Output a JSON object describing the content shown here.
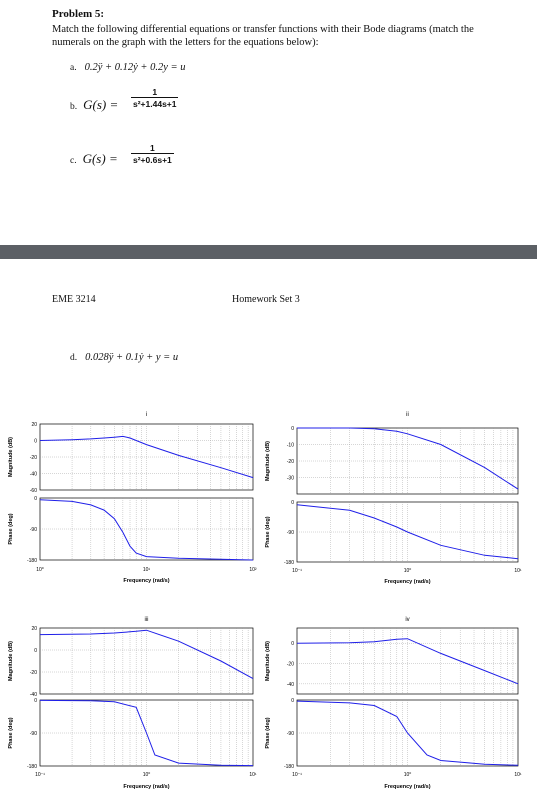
{
  "problem": {
    "title": "Problem 5:",
    "prompt": "Match the following differential equations or transfer functions with their Bode diagrams (match the numerals on the graph with the letters for the equations below):"
  },
  "equations": {
    "a": {
      "label": "a.",
      "text": "0.2ÿ + 0.12ẏ + 0.2y = u"
    },
    "b": {
      "label": "b.",
      "lhs": "G(s) =",
      "num": "1",
      "den": "s²+1.44s+1"
    },
    "c": {
      "label": "c.",
      "lhs": "G(s) =",
      "num": "1",
      "den": "s²+0.6s+1"
    },
    "d": {
      "label": "d.",
      "text": "0.028ÿ + 0.1ẏ + y = u"
    }
  },
  "page_header": {
    "left": "EME 3214",
    "right": "Homework Set 3"
  },
  "chart_data": [
    {
      "type": "line",
      "title": "i",
      "xlabel": "Frequency (rad/s)",
      "x_scale": "log",
      "xlim": [
        1,
        100
      ],
      "x_ticks": [
        "10⁰",
        "10¹",
        "10²"
      ],
      "magnitude": {
        "ylabel": "Magnitude (dB)",
        "ylim": [
          -60,
          20
        ],
        "y_ticks": [
          "20",
          "0",
          "-20",
          "-40",
          "-60"
        ],
        "x": [
          1,
          2,
          3,
          4,
          5,
          6,
          7,
          8,
          10,
          20,
          50,
          100
        ],
        "y": [
          0,
          1,
          2,
          3,
          4,
          5,
          3,
          0,
          -5,
          -18,
          -33,
          -45
        ]
      },
      "phase": {
        "ylabel": "Phase (deg)",
        "ylim": [
          -180,
          0
        ],
        "y_ticks": [
          "0",
          "-90",
          "-180"
        ],
        "x": [
          1,
          2,
          3,
          4,
          5,
          6,
          7,
          8,
          10,
          20,
          50,
          100
        ],
        "y": [
          -5,
          -10,
          -20,
          -35,
          -60,
          -100,
          -140,
          -160,
          -170,
          -175,
          -178,
          -180
        ]
      }
    },
    {
      "type": "line",
      "title": "ii",
      "xlabel": "Frequency (rad/s)",
      "x_scale": "log",
      "xlim": [
        0.1,
        10
      ],
      "x_ticks": [
        "10⁻¹",
        "10⁰",
        "10¹"
      ],
      "magnitude": {
        "ylabel": "Magnitude (dB)",
        "ylim": [
          -40,
          0
        ],
        "y_ticks": [
          "0",
          "-10",
          "-20",
          "-30"
        ],
        "x": [
          0.1,
          0.3,
          0.5,
          0.8,
          1,
          2,
          5,
          10
        ],
        "y": [
          0,
          0,
          -0.5,
          -2,
          -3.5,
          -10,
          -24,
          -37
        ]
      },
      "phase": {
        "ylabel": "Phase (deg)",
        "ylim": [
          -180,
          0
        ],
        "y_ticks": [
          "0",
          "-90",
          "-180"
        ],
        "x": [
          0.1,
          0.3,
          0.5,
          0.8,
          1,
          2,
          5,
          10
        ],
        "y": [
          -8,
          -25,
          -48,
          -75,
          -90,
          -130,
          -160,
          -170
        ]
      }
    },
    {
      "type": "line",
      "title": "iii",
      "xlabel": "Frequency (rad/s)",
      "x_scale": "log",
      "xlim": [
        0.1,
        10
      ],
      "x_ticks": [
        "10⁻¹",
        "10⁰",
        "10¹"
      ],
      "magnitude": {
        "ylabel": "Magnitude (dB)",
        "ylim": [
          -40,
          20
        ],
        "y_ticks": [
          "20",
          "0",
          "-20",
          "-40"
        ],
        "x": [
          0.1,
          0.3,
          0.5,
          0.8,
          1,
          2,
          5,
          10
        ],
        "y": [
          14,
          14.5,
          15.5,
          17,
          18,
          8,
          -10,
          -26
        ]
      },
      "phase": {
        "ylabel": "Phase (deg)",
        "ylim": [
          -180,
          0
        ],
        "y_ticks": [
          "0",
          "-90",
          "-180"
        ],
        "x": [
          0.1,
          0.3,
          0.5,
          0.8,
          1,
          1.2,
          2,
          5,
          10
        ],
        "y": [
          -1,
          -2,
          -5,
          -20,
          -90,
          -150,
          -172,
          -178,
          -179
        ]
      }
    },
    {
      "type": "line",
      "title": "iv",
      "xlabel": "Frequency (rad/s)",
      "x_scale": "log",
      "xlim": [
        0.1,
        10
      ],
      "x_ticks": [
        "10⁻¹",
        "10⁰",
        "10¹"
      ],
      "magnitude": {
        "ylabel": "Magnitude (dB)",
        "ylim": [
          -50,
          15
        ],
        "y_ticks": [
          "0",
          "-20",
          "-40"
        ],
        "x": [
          0.1,
          0.3,
          0.5,
          0.8,
          1,
          2,
          5,
          10
        ],
        "y": [
          0,
          0.5,
          1.5,
          4,
          4.5,
          -10,
          -27,
          -40
        ]
      },
      "phase": {
        "ylabel": "Phase (deg)",
        "ylim": [
          -180,
          0
        ],
        "y_ticks": [
          "0",
          "-90",
          "-180"
        ],
        "x": [
          0.1,
          0.3,
          0.5,
          0.8,
          1,
          1.5,
          2,
          5,
          10
        ],
        "y": [
          -3,
          -8,
          -15,
          -45,
          -90,
          -150,
          -165,
          -175,
          -178
        ]
      }
    }
  ]
}
